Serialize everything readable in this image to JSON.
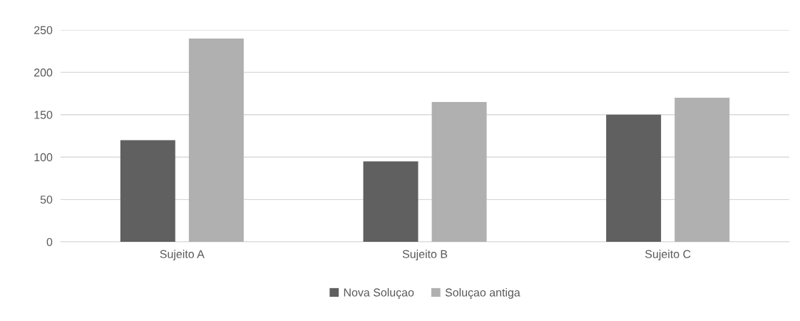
{
  "chart_data": {
    "type": "bar",
    "categories": [
      "Sujeito A",
      "Sujeito B",
      "Sujeito C"
    ],
    "series": [
      {
        "name": "Nova Soluçao",
        "color": "#606060",
        "values": [
          120,
          95,
          150
        ]
      },
      {
        "name": "Soluçao antiga",
        "color": "#b0b0b0",
        "values": [
          240,
          165,
          170
        ]
      }
    ],
    "ylim": [
      0,
      250
    ],
    "yticks": [
      0,
      50,
      100,
      150,
      200,
      250
    ],
    "grid": "y",
    "legend": "bottom"
  }
}
